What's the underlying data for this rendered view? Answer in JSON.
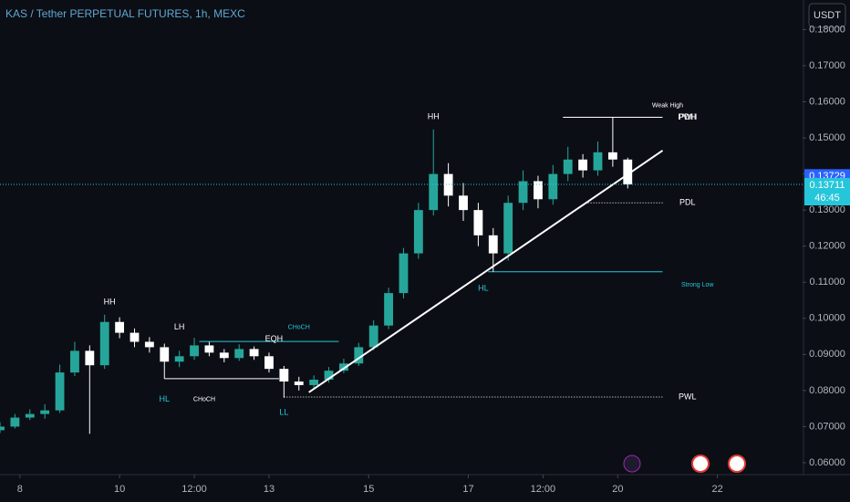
{
  "chart_data": {
    "type": "candlestick",
    "title": "KAS / Tether PERPETUAL FUTURES, 1h, MEXC",
    "currency": "USDT",
    "up_color": "#26a69a",
    "down_color": "#ffffff",
    "x": [
      7.6,
      7.9,
      8.2,
      8.5,
      8.8,
      9.1,
      9.4,
      9.7,
      10.0,
      10.3,
      10.6,
      10.9,
      11.2,
      11.5,
      11.8,
      12.1,
      12.4,
      12.7,
      13.0,
      13.3,
      13.6,
      13.9,
      14.2,
      14.5,
      14.8,
      15.1,
      15.4,
      15.7,
      16.0,
      16.3,
      16.6,
      16.9,
      17.2,
      17.5,
      17.8,
      18.1,
      18.4,
      18.7,
      19.0,
      19.3,
      19.6,
      19.9,
      20.2
    ],
    "open": [
      0.069,
      0.07,
      0.0725,
      0.0735,
      0.0745,
      0.085,
      0.091,
      0.087,
      0.099,
      0.096,
      0.0935,
      0.092,
      0.088,
      0.0895,
      0.0925,
      0.0905,
      0.089,
      0.0915,
      0.0895,
      0.086,
      0.0825,
      0.0815,
      0.083,
      0.0855,
      0.0875,
      0.092,
      0.098,
      0.107,
      0.118,
      0.13,
      0.14,
      0.134,
      0.13,
      0.123,
      0.118,
      0.132,
      0.138,
      0.133,
      0.14,
      0.144,
      0.141,
      0.146,
      0.144
    ],
    "high": [
      0.0712,
      0.0735,
      0.0748,
      0.0762,
      0.0872,
      0.0935,
      0.0925,
      0.101,
      0.1003,
      0.0972,
      0.0948,
      0.093,
      0.091,
      0.0946,
      0.0935,
      0.0915,
      0.0928,
      0.0922,
      0.0905,
      0.0868,
      0.0838,
      0.0842,
      0.0865,
      0.0888,
      0.0932,
      0.0995,
      0.1085,
      0.1195,
      0.132,
      0.1523,
      0.143,
      0.1375,
      0.132,
      0.125,
      0.134,
      0.141,
      0.1395,
      0.1425,
      0.1475,
      0.1455,
      0.149,
      0.1557,
      0.1445
    ],
    "low": [
      0.0682,
      0.0695,
      0.0718,
      0.0722,
      0.0738,
      0.084,
      0.068,
      0.086,
      0.0945,
      0.092,
      0.0905,
      0.0833,
      0.0865,
      0.0885,
      0.0895,
      0.0878,
      0.0882,
      0.0885,
      0.085,
      0.078,
      0.08,
      0.0805,
      0.0822,
      0.0848,
      0.0868,
      0.0912,
      0.097,
      0.1055,
      0.1165,
      0.1285,
      0.131,
      0.127,
      0.12,
      0.1129,
      0.116,
      0.13,
      0.1305,
      0.1315,
      0.138,
      0.139,
      0.1395,
      0.142,
      0.136
    ],
    "close": [
      0.07,
      0.0725,
      0.0735,
      0.0745,
      0.085,
      0.091,
      0.087,
      0.099,
      0.096,
      0.0935,
      0.092,
      0.088,
      0.0895,
      0.0925,
      0.0905,
      0.089,
      0.0915,
      0.0895,
      0.086,
      0.0825,
      0.0815,
      0.083,
      0.0855,
      0.0875,
      0.092,
      0.098,
      0.107,
      0.118,
      0.13,
      0.14,
      0.134,
      0.13,
      0.123,
      0.118,
      0.132,
      0.138,
      0.133,
      0.14,
      0.144,
      0.141,
      0.146,
      0.144,
      0.13711
    ],
    "xlim": [
      7.6,
      23.71
    ],
    "xticks": [
      8,
      10,
      {
        "value": 11.5,
        "label": "12:00"
      },
      13,
      15,
      17,
      {
        "value": 18.5,
        "label": "12:00"
      },
      20,
      22
    ],
    "ylim": [
      0.0567,
      0.1882
    ],
    "yticks": [
      {
        "value": 0.06,
        "label": "0.06000"
      },
      {
        "value": 0.07,
        "label": "0.07000"
      },
      {
        "value": 0.08,
        "label": "0.08000"
      },
      {
        "value": 0.09,
        "label": "0.09000"
      },
      {
        "value": 0.1,
        "label": "0.10000"
      },
      {
        "value": 0.11,
        "label": "0.11000"
      },
      {
        "value": 0.12,
        "label": "0.12000"
      },
      {
        "value": 0.13,
        "label": "0.13000"
      },
      {
        "value": 0.14,
        "label": "0.14000"
      },
      {
        "value": 0.15,
        "label": "0.15000"
      },
      {
        "value": 0.16,
        "label": "0.16000"
      },
      {
        "value": 0.17,
        "label": "0.17000"
      },
      {
        "value": 0.18,
        "label": "0.18000"
      }
    ],
    "trendline": {
      "x": [
        13.8,
        20.9
      ],
      "y": [
        0.0795,
        0.1465
      ],
      "color": "#ffffff"
    },
    "levels": [
      {
        "value": 0.0936,
        "from": 11.6,
        "to": 14.4,
        "color": "#26c6da",
        "dotted": false
      },
      {
        "value": 0.0833,
        "from": 10.9,
        "to": 13.2,
        "color": "#ffffff",
        "dotted": false
      },
      {
        "value": 0.1557,
        "from": 18.9,
        "to": 20.9,
        "color": "#ffffff",
        "dotted": false
      },
      {
        "value": 0.132,
        "from": 19.4,
        "to": 20.9,
        "color": "#ffffff",
        "dotted": true
      },
      {
        "value": 0.1129,
        "from": 17.4,
        "to": 20.9,
        "color": "#26c6da",
        "dotted": false
      },
      {
        "value": 0.0782,
        "from": 13.3,
        "to": 20.9,
        "color": "#ffffff",
        "dotted": true
      }
    ],
    "annotations": [
      {
        "text": "HH",
        "x": 9.8,
        "y": 0.1045,
        "color": "#ffffff"
      },
      {
        "text": "HL",
        "x": 10.9,
        "y": 0.0775,
        "color": "#26c6da"
      },
      {
        "text": "LH",
        "x": 11.2,
        "y": 0.0975,
        "color": "#ffffff"
      },
      {
        "text": "CHoCH",
        "x": 13.6,
        "y": 0.0975,
        "color": "#26c6da"
      },
      {
        "text": "EQH",
        "x": 13.1,
        "y": 0.0942,
        "color": "#ffffff"
      },
      {
        "text": "CHoCH",
        "x": 11.7,
        "y": 0.0775,
        "color": "#ffffff"
      },
      {
        "text": "LL",
        "x": 13.3,
        "y": 0.0739,
        "color": "#26c6da"
      },
      {
        "text": "HH",
        "x": 16.3,
        "y": 0.1558,
        "color": "#ffffff"
      },
      {
        "text": "HL",
        "x": 17.3,
        "y": 0.1083,
        "color": "#26c6da"
      },
      {
        "text": "Weak High",
        "x": 21.0,
        "y": 0.1589,
        "color": "#ffffff"
      },
      {
        "text": "PWH",
        "x": 21.4,
        "y": 0.1557,
        "color": "#ffffff"
      },
      {
        "text": "PDH",
        "x": 21.4,
        "y": 0.1557,
        "color": "#ffffff"
      },
      {
        "text": "PDL",
        "x": 21.4,
        "y": 0.132,
        "color": "#ffffff"
      },
      {
        "text": "Strong Low",
        "x": 21.6,
        "y": 0.1093,
        "color": "#26c6da"
      },
      {
        "text": "PWL",
        "x": 21.4,
        "y": 0.0782,
        "color": "#ffffff"
      }
    ],
    "price_labels": [
      {
        "value": 0.13729,
        "label": "0.13729",
        "color": "#2962ff"
      },
      {
        "value": 0.13711,
        "label": "0.13711",
        "countdown": "46:45",
        "color": "#26c6da"
      }
    ]
  }
}
